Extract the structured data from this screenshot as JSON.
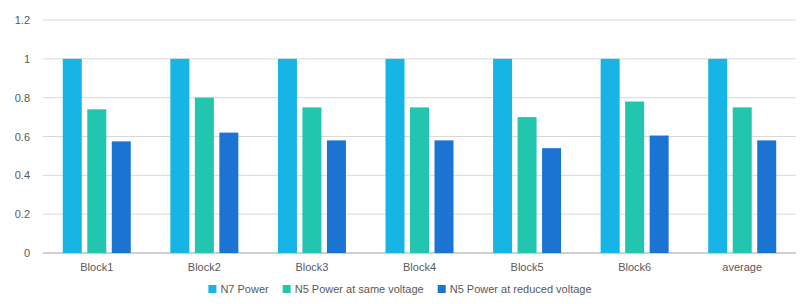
{
  "chart_data": {
    "type": "bar",
    "categories": [
      "Block1",
      "Block2",
      "Block3",
      "Block4",
      "Block5",
      "Block6",
      "average"
    ],
    "series": [
      {
        "name": "N7 Power",
        "color": "#17b4e6",
        "values": [
          1,
          1,
          1,
          1,
          1,
          1,
          1
        ]
      },
      {
        "name": "N5 Power at same voltage",
        "color": "#22c5ad",
        "values": [
          0.74,
          0.8,
          0.75,
          0.75,
          0.7,
          0.78,
          0.75
        ]
      },
      {
        "name": "N5 Power at reduced voltage",
        "color": "#1c74d2",
        "values": [
          0.575,
          0.62,
          0.58,
          0.58,
          0.54,
          0.605,
          0.58
        ]
      }
    ],
    "ylim": [
      0,
      1.2
    ],
    "yticks": [
      0,
      0.2,
      0.4,
      0.6,
      0.8,
      1,
      1.2
    ],
    "grid": true,
    "legend": "bottom"
  }
}
